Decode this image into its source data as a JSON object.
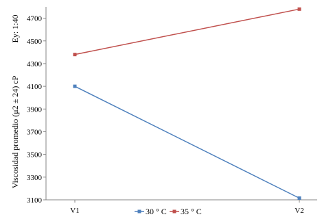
{
  "chart_data": {
    "type": "line",
    "categories": [
      "V1",
      "V2"
    ],
    "series": [
      {
        "name": "30 ° C",
        "values": [
          4100,
          3115
        ],
        "color": "#4f81bd"
      },
      {
        "name": "35 ° C",
        "values": [
          4380,
          4780
        ],
        "color": "#c0504d"
      }
    ],
    "ylabel_line1": "Ey: 1:40",
    "ylabel_line2": "Viscosidad promedio (μ2 ± 24) cP",
    "ylim": [
      3100,
      4800
    ],
    "yticks": [
      3100,
      3300,
      3500,
      3700,
      3900,
      4100,
      4300,
      4500,
      4700
    ],
    "grid": false,
    "legend_position": "bottom"
  }
}
